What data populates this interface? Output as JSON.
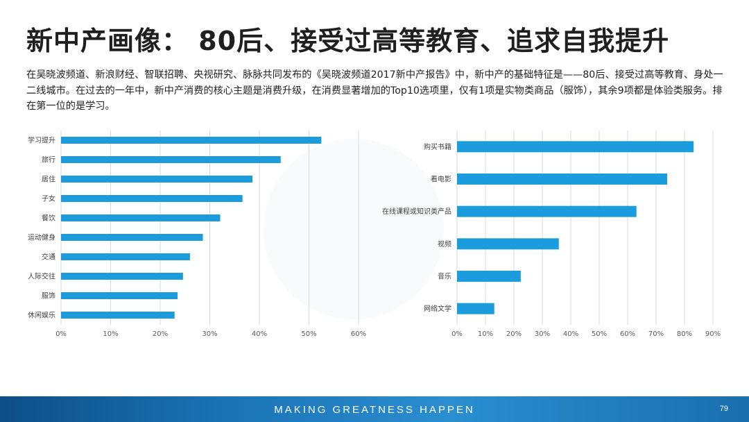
{
  "header": {
    "title": "新中产画像： 80后、接受过高等教育、追求自我提升"
  },
  "description": "在吴晓波频道、新浪财经、智联招聘、央视研究、脉脉共同发布的《吴晓波频道2017新中产报告》中，新中产的基础特征是——80后、接受过高等教育、身处一二线城市。在过去的一年中，新中产消费的核心主题是消费升级，在消费显著增加的Top10选项里，仅有1项是实物类商品（服饰），其余9项都是体验类服务。排在第一位的是学习。",
  "colors": {
    "bar": "#1b9ddd",
    "grid": "#d9d9d9",
    "footer": "#1a73b5"
  },
  "chart_data": [
    {
      "type": "bar",
      "orientation": "horizontal",
      "categories": [
        "学习提升",
        "旅行",
        "居住",
        "子女",
        "餐饮",
        "运动健身",
        "交通",
        "人际交往",
        "服饰",
        "休闲娱乐"
      ],
      "values": [
        52.5,
        44.3,
        38.6,
        36.6,
        32.1,
        28.6,
        26.0,
        24.6,
        23.5,
        22.9
      ],
      "xlim": [
        0,
        60
      ],
      "ticks": [
        0,
        10,
        20,
        30,
        40,
        50,
        60
      ],
      "tick_labels": [
        "0%",
        "10%",
        "20%",
        "30%",
        "40%",
        "50%",
        "60%"
      ],
      "grid": true,
      "title": "",
      "xlabel": "",
      "ylabel": ""
    },
    {
      "type": "bar",
      "orientation": "horizontal",
      "categories": [
        "购买书籍",
        "看电影",
        "在线课程或知识类产品",
        "视频",
        "音乐",
        "网络文学"
      ],
      "values": [
        83.2,
        73.9,
        63.1,
        35.8,
        22.4,
        13.1
      ],
      "xlim": [
        0,
        90
      ],
      "ticks": [
        0,
        10,
        20,
        30,
        40,
        50,
        60,
        70,
        80,
        90
      ],
      "tick_labels": [
        "0%",
        "10%",
        "20%",
        "30%",
        "40%",
        "50%",
        "60%",
        "70%",
        "80%",
        "90%"
      ],
      "grid": true,
      "title": "",
      "xlabel": "",
      "ylabel": ""
    }
  ],
  "footer": {
    "slogan": "MAKING GREATNESS HAPPEN",
    "page_number": "79"
  }
}
